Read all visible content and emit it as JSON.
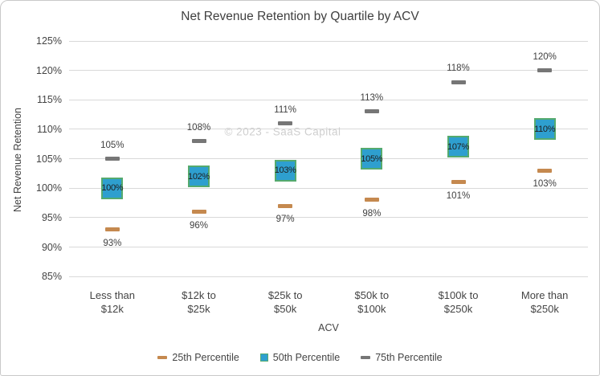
{
  "window": {
    "background": "#ffffff",
    "border_color": "#c9c9c9"
  },
  "chart_data": {
    "type": "scatter",
    "title": "Net Revenue Retention by Quartile by ACV",
    "xlabel": "ACV",
    "ylabel": "Net Revenue Retention",
    "watermark": "© 2023 - SaaS Capital",
    "categories": [
      "Less than $12k",
      "$12k to $25k",
      "$25k to $50k",
      "$50k to $100k",
      "$100k to $250k",
      "More than $250k"
    ],
    "category_lines": [
      [
        "Less than",
        "$12k"
      ],
      [
        "$12k to",
        "$25k"
      ],
      [
        "$25k to",
        "$50k"
      ],
      [
        "$50k to",
        "$100k"
      ],
      [
        "$100k to",
        "$250k"
      ],
      [
        "More than",
        "$250k"
      ]
    ],
    "series": [
      {
        "name": "25th Percentile",
        "marker": "dash",
        "color": "#C5894F",
        "values": [
          93,
          96,
          97,
          98,
          101,
          103
        ],
        "label_position": "below"
      },
      {
        "name": "50th Percentile",
        "marker": "square",
        "color": "#2E9FCF",
        "marker_border": "#55AA6E",
        "values": [
          100,
          102,
          103,
          105,
          107,
          110
        ],
        "label_position": "inside"
      },
      {
        "name": "75th Percentile",
        "marker": "dash",
        "color": "#767676",
        "values": [
          105,
          108,
          111,
          113,
          118,
          120
        ],
        "label_position": "above"
      }
    ],
    "ylim": [
      85,
      125
    ],
    "ytick_step": 5,
    "ytick_format": "percent",
    "data_label_format": "percent",
    "grid": true,
    "legend_position": "bottom",
    "grid_color": "#D9D9D9",
    "axis_text_color": "#444444",
    "data_label_color": "#404040",
    "title_color": "#3F3F3F",
    "watermark_color": "#CFCFCF"
  }
}
